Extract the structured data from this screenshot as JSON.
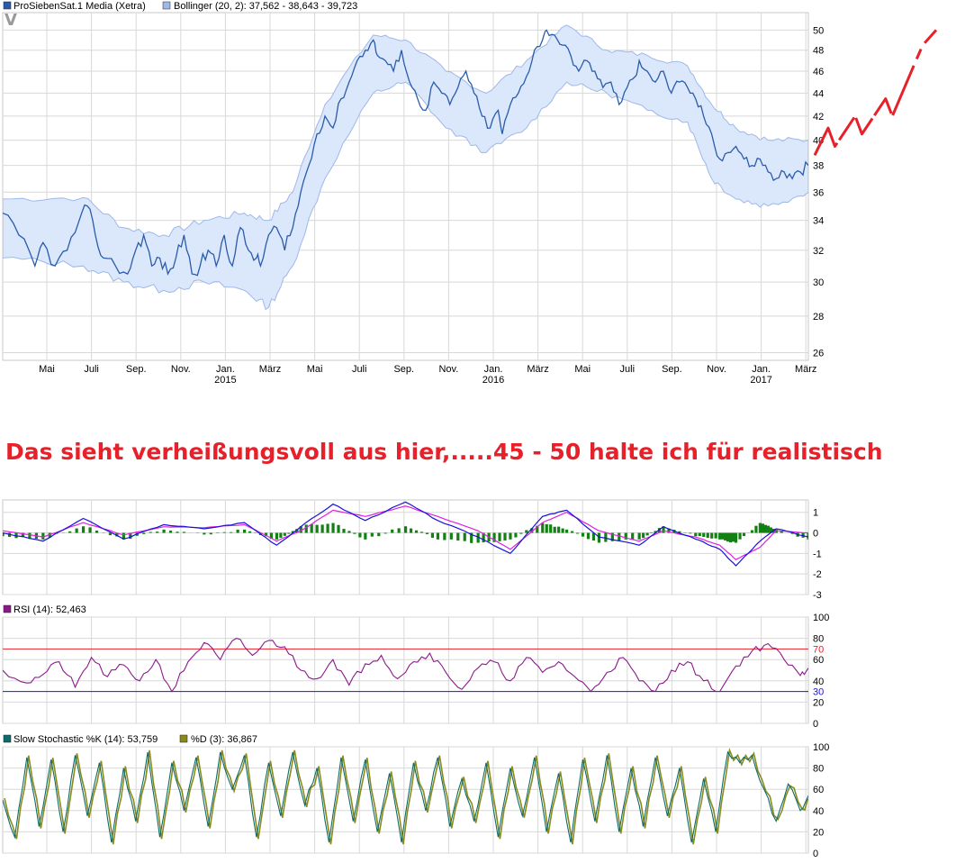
{
  "annotation": "Das sieht verheißungsvoll aus hier,.....45 - 50 halte ich für realistisch",
  "logo": "V",
  "colors": {
    "price": "#2a5caa",
    "band_fill": "#dbe7fb",
    "band_line": "#9fb8e8",
    "macd": "#1a12d8",
    "signal": "#e020e0",
    "histogram": "#128012",
    "rsi": "#8a1a8a",
    "rsi_over": "#e8202a",
    "rsi_under": "#1a12d8",
    "stoch_k": "#0d6b6b",
    "stoch_d": "#8a8a1a",
    "forecast": "#e8202a",
    "grid": "#d8d8d8"
  },
  "chart_data": [
    {
      "type": "line",
      "id": "price",
      "legend": [
        {
          "name": "ProSiebenSat.1 Media (Xetra)",
          "color": "#2a5caa"
        },
        {
          "name": "Bollinger (20, 2): 37,562 - 38,643 - 39,723",
          "color": "#9fb8e8"
        }
      ],
      "x_ticks": [
        "Mai",
        "Juli",
        "Sep.",
        "Nov.",
        "Jan.",
        "März",
        "Mai",
        "Juli",
        "Sep.",
        "Nov.",
        "Jan.",
        "März",
        "Mai",
        "Juli",
        "Sep.",
        "Nov.",
        "Jan.",
        "März"
      ],
      "year_labels": [
        {
          "label": "2015",
          "at_tick": 4
        },
        {
          "label": "2016",
          "at_tick": 10
        },
        {
          "label": "2017",
          "at_tick": 16
        }
      ],
      "y_ticks": [
        26,
        28,
        30,
        32,
        34,
        36,
        38,
        40,
        42,
        44,
        46,
        48,
        50
      ],
      "scale": "log",
      "ylim": [
        25.6,
        51.8
      ],
      "x_range": [
        0,
        200
      ],
      "series_points": [
        [
          0,
          34.5
        ],
        [
          4,
          33
        ],
        [
          8,
          31
        ],
        [
          10,
          32.5
        ],
        [
          13,
          31
        ],
        [
          16,
          32
        ],
        [
          19,
          34
        ],
        [
          21,
          35
        ],
        [
          23,
          33
        ],
        [
          25,
          31.5
        ],
        [
          28,
          31
        ],
        [
          31,
          30.5
        ],
        [
          33,
          32
        ],
        [
          35,
          33
        ],
        [
          37,
          31
        ],
        [
          39,
          31.5
        ],
        [
          41,
          30.5
        ],
        [
          43,
          31.5
        ],
        [
          45,
          33
        ],
        [
          47,
          30.5
        ],
        [
          49,
          31
        ],
        [
          51,
          32
        ],
        [
          53,
          31
        ],
        [
          55,
          33
        ],
        [
          57,
          31
        ],
        [
          59,
          33.5
        ],
        [
          61,
          32
        ],
        [
          63,
          31.5
        ],
        [
          64,
          31
        ],
        [
          66,
          33
        ],
        [
          68,
          33.5
        ],
        [
          70,
          32
        ],
        [
          72,
          33.5
        ],
        [
          74,
          36
        ],
        [
          76,
          38
        ],
        [
          78,
          40.5
        ],
        [
          80,
          42
        ],
        [
          82,
          41
        ],
        [
          84,
          43.5
        ],
        [
          86,
          45
        ],
        [
          88,
          47
        ],
        [
          90,
          48
        ],
        [
          92,
          49
        ],
        [
          93,
          47.5
        ],
        [
          95,
          47
        ],
        [
          97,
          46
        ],
        [
          99,
          48
        ],
        [
          101,
          45
        ],
        [
          103,
          43.5
        ],
        [
          105,
          42.5
        ],
        [
          107,
          45
        ],
        [
          109,
          44
        ],
        [
          111,
          43
        ],
        [
          113,
          44.5
        ],
        [
          115,
          46
        ],
        [
          117,
          44
        ],
        [
          119,
          42
        ],
        [
          121,
          41
        ],
        [
          123,
          42.5
        ],
        [
          124,
          40.5
        ],
        [
          126,
          43
        ],
        [
          128,
          44
        ],
        [
          130,
          45.5
        ],
        [
          132,
          48
        ],
        [
          134,
          49
        ],
        [
          135,
          50
        ],
        [
          137,
          49.5
        ],
        [
          139,
          48.5
        ],
        [
          141,
          47.5
        ],
        [
          143,
          46
        ],
        [
          145,
          47
        ],
        [
          147,
          46
        ],
        [
          149,
          44.5
        ],
        [
          151,
          45
        ],
        [
          153,
          43
        ],
        [
          155,
          44.5
        ],
        [
          157,
          45.5
        ],
        [
          158,
          47
        ],
        [
          160,
          46
        ],
        [
          162,
          45
        ],
        [
          164,
          46
        ],
        [
          166,
          44
        ],
        [
          168,
          45
        ],
        [
          170,
          44.5
        ],
        [
          172,
          43.5
        ],
        [
          174,
          42
        ],
        [
          176,
          40.5
        ],
        [
          178,
          38.5
        ],
        [
          180,
          39
        ],
        [
          182,
          39.5
        ],
        [
          184,
          38.5
        ],
        [
          186,
          38
        ],
        [
          188,
          38.5
        ],
        [
          190,
          37.5
        ],
        [
          192,
          37
        ],
        [
          194,
          37.5
        ],
        [
          196,
          37
        ],
        [
          198,
          37.5
        ],
        [
          200,
          38
        ]
      ],
      "bands_upper": [
        [
          0,
          35.5
        ],
        [
          20,
          35.6
        ],
        [
          30,
          33.5
        ],
        [
          40,
          33
        ],
        [
          50,
          34
        ],
        [
          60,
          34.5
        ],
        [
          66,
          34
        ],
        [
          72,
          36
        ],
        [
          80,
          43
        ],
        [
          92,
          49.5
        ],
        [
          100,
          49
        ],
        [
          110,
          46
        ],
        [
          120,
          44
        ],
        [
          130,
          47
        ],
        [
          140,
          50.5
        ],
        [
          150,
          48
        ],
        [
          160,
          47.5
        ],
        [
          170,
          46.5
        ],
        [
          176,
          43
        ],
        [
          182,
          41
        ],
        [
          190,
          40
        ],
        [
          200,
          40
        ]
      ],
      "bands_lower": [
        [
          0,
          31.5
        ],
        [
          20,
          31
        ],
        [
          30,
          30
        ],
        [
          40,
          29.5
        ],
        [
          50,
          30
        ],
        [
          60,
          29.5
        ],
        [
          66,
          28.5
        ],
        [
          72,
          31
        ],
        [
          80,
          37
        ],
        [
          92,
          44
        ],
        [
          100,
          45
        ],
        [
          110,
          41
        ],
        [
          120,
          39
        ],
        [
          130,
          41
        ],
        [
          140,
          45
        ],
        [
          150,
          44
        ],
        [
          160,
          42.5
        ],
        [
          170,
          41.5
        ],
        [
          176,
          37
        ],
        [
          182,
          35.5
        ],
        [
          190,
          35
        ],
        [
          200,
          36
        ]
      ],
      "forecast_points": [
        [
          0,
          38.8
        ],
        [
          4,
          41
        ],
        [
          6,
          39.5
        ],
        [
          12,
          42
        ],
        [
          14,
          40.5
        ],
        [
          21,
          43.5
        ],
        [
          23,
          42
        ],
        [
          30,
          47
        ],
        [
          32,
          48.5
        ],
        [
          36,
          50
        ]
      ]
    },
    {
      "type": "line",
      "id": "macd",
      "y_ticks": [
        1,
        0,
        -1,
        -2,
        -3
      ],
      "ylim": [
        -3,
        1.6
      ],
      "x_range": [
        0,
        200
      ],
      "macd_points": [
        [
          0,
          0
        ],
        [
          10,
          -0.4
        ],
        [
          20,
          0.7
        ],
        [
          30,
          -0.3
        ],
        [
          40,
          0.4
        ],
        [
          50,
          0.2
        ],
        [
          60,
          0.5
        ],
        [
          68,
          -0.6
        ],
        [
          74,
          0.3
        ],
        [
          82,
          1.4
        ],
        [
          90,
          0.6
        ],
        [
          100,
          1.5
        ],
        [
          108,
          0.6
        ],
        [
          118,
          -0.2
        ],
        [
          126,
          -1.0
        ],
        [
          134,
          0.8
        ],
        [
          140,
          1.1
        ],
        [
          148,
          -0.2
        ],
        [
          158,
          -0.6
        ],
        [
          164,
          0.3
        ],
        [
          172,
          -0.3
        ],
        [
          178,
          -0.8
        ],
        [
          182,
          -1.6
        ],
        [
          188,
          -0.4
        ],
        [
          192,
          0.2
        ],
        [
          200,
          -0.2
        ]
      ],
      "signal_points": [
        [
          0,
          0.1
        ],
        [
          10,
          -0.2
        ],
        [
          20,
          0.5
        ],
        [
          30,
          -0.1
        ],
        [
          40,
          0.3
        ],
        [
          50,
          0.25
        ],
        [
          60,
          0.4
        ],
        [
          68,
          -0.4
        ],
        [
          74,
          0.1
        ],
        [
          82,
          1.1
        ],
        [
          90,
          0.8
        ],
        [
          100,
          1.3
        ],
        [
          108,
          0.8
        ],
        [
          118,
          0.1
        ],
        [
          126,
          -0.8
        ],
        [
          134,
          0.5
        ],
        [
          140,
          1.0
        ],
        [
          148,
          0.1
        ],
        [
          158,
          -0.4
        ],
        [
          164,
          0.1
        ],
        [
          172,
          -0.2
        ],
        [
          178,
          -0.6
        ],
        [
          182,
          -1.3
        ],
        [
          188,
          -0.7
        ],
        [
          192,
          0.1
        ],
        [
          200,
          0.0
        ]
      ]
    },
    {
      "type": "line",
      "id": "rsi",
      "legend": [
        {
          "name": "RSI (14): 52,463",
          "color": "#8a1a8a"
        }
      ],
      "y_ticks": [
        100,
        80,
        60,
        40,
        20,
        0
      ],
      "ylim": [
        0,
        100
      ],
      "thresholds": [
        {
          "value": 70,
          "label": "70",
          "color": "#e8202a"
        },
        {
          "value": 30,
          "label": "30",
          "color": "#1a12d8"
        }
      ],
      "x_range": [
        0,
        200
      ],
      "points": [
        [
          0,
          50
        ],
        [
          6,
          38
        ],
        [
          10,
          46
        ],
        [
          14,
          58
        ],
        [
          18,
          34
        ],
        [
          22,
          62
        ],
        [
          26,
          44
        ],
        [
          30,
          55
        ],
        [
          34,
          40
        ],
        [
          38,
          60
        ],
        [
          42,
          30
        ],
        [
          46,
          58
        ],
        [
          50,
          76
        ],
        [
          54,
          60
        ],
        [
          58,
          80
        ],
        [
          62,
          64
        ],
        [
          66,
          78
        ],
        [
          70,
          72
        ],
        [
          74,
          50
        ],
        [
          78,
          42
        ],
        [
          82,
          60
        ],
        [
          86,
          36
        ],
        [
          90,
          56
        ],
        [
          94,
          64
        ],
        [
          98,
          42
        ],
        [
          102,
          58
        ],
        [
          106,
          66
        ],
        [
          110,
          48
        ],
        [
          114,
          32
        ],
        [
          118,
          52
        ],
        [
          122,
          58
        ],
        [
          126,
          40
        ],
        [
          130,
          62
        ],
        [
          134,
          48
        ],
        [
          138,
          58
        ],
        [
          142,
          44
        ],
        [
          146,
          30
        ],
        [
          150,
          48
        ],
        [
          154,
          62
        ],
        [
          158,
          40
        ],
        [
          162,
          30
        ],
        [
          166,
          50
        ],
        [
          170,
          58
        ],
        [
          174,
          40
        ],
        [
          178,
          30
        ],
        [
          182,
          54
        ],
        [
          186,
          68
        ],
        [
          190,
          75
        ],
        [
          194,
          60
        ],
        [
          198,
          45
        ],
        [
          200,
          52
        ]
      ]
    },
    {
      "type": "line",
      "id": "stochastic",
      "legend": [
        {
          "name": "Slow Stochastic %K (14): 53,759",
          "color": "#0d6b6b"
        },
        {
          "name": "%D (3): 36,867",
          "color": "#8a8a1a"
        }
      ],
      "y_ticks": [
        100,
        80,
        60,
        40,
        20,
        0
      ],
      "ylim": [
        0,
        100
      ],
      "x_range": [
        0,
        200
      ],
      "points": [
        [
          0,
          50
        ],
        [
          3,
          15
        ],
        [
          6,
          90
        ],
        [
          9,
          25
        ],
        [
          12,
          88
        ],
        [
          15,
          20
        ],
        [
          18,
          92
        ],
        [
          21,
          35
        ],
        [
          24,
          85
        ],
        [
          27,
          10
        ],
        [
          30,
          80
        ],
        [
          33,
          30
        ],
        [
          36,
          95
        ],
        [
          39,
          15
        ],
        [
          42,
          85
        ],
        [
          45,
          40
        ],
        [
          48,
          90
        ],
        [
          51,
          25
        ],
        [
          54,
          95
        ],
        [
          57,
          60
        ],
        [
          60,
          92
        ],
        [
          63,
          15
        ],
        [
          66,
          85
        ],
        [
          69,
          35
        ],
        [
          72,
          95
        ],
        [
          75,
          45
        ],
        [
          78,
          80
        ],
        [
          81,
          10
        ],
        [
          84,
          90
        ],
        [
          87,
          30
        ],
        [
          90,
          88
        ],
        [
          93,
          20
        ],
        [
          96,
          75
        ],
        [
          99,
          10
        ],
        [
          102,
          85
        ],
        [
          105,
          40
        ],
        [
          108,
          90
        ],
        [
          111,
          25
        ],
        [
          114,
          70
        ],
        [
          117,
          30
        ],
        [
          120,
          85
        ],
        [
          123,
          15
        ],
        [
          126,
          80
        ],
        [
          129,
          35
        ],
        [
          132,
          90
        ],
        [
          135,
          20
        ],
        [
          138,
          75
        ],
        [
          141,
          10
        ],
        [
          144,
          88
        ],
        [
          147,
          30
        ],
        [
          150,
          92
        ],
        [
          153,
          20
        ],
        [
          156,
          80
        ],
        [
          159,
          25
        ],
        [
          162,
          90
        ],
        [
          165,
          35
        ],
        [
          168,
          80
        ],
        [
          171,
          10
        ],
        [
          174,
          70
        ],
        [
          177,
          20
        ],
        [
          180,
          95
        ],
        [
          183,
          85
        ],
        [
          186,
          92
        ],
        [
          189,
          60
        ],
        [
          192,
          30
        ],
        [
          195,
          65
        ],
        [
          198,
          40
        ],
        [
          200,
          54
        ]
      ]
    }
  ]
}
